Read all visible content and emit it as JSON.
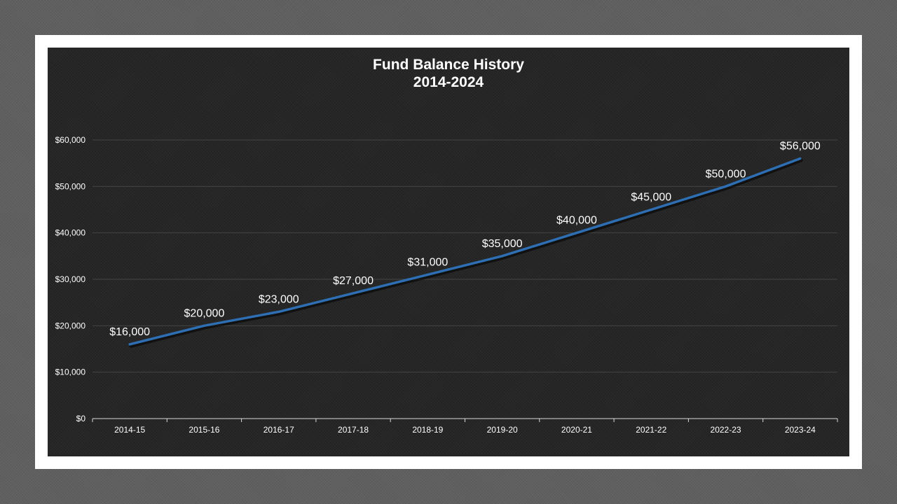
{
  "colors": {
    "background": "#5f5f5f",
    "frame": "#ffffff",
    "plot_background": "#262626",
    "line": "#2e6fb4",
    "text": "#ffffff",
    "gridline": "#444444"
  },
  "chart_data": {
    "type": "line",
    "title": "Fund Balance History",
    "subtitle": "2014-2024",
    "xlabel": "",
    "ylabel": "",
    "categories": [
      "2014-15",
      "2015-16",
      "2016-17",
      "2017-18",
      "2018-19",
      "2019-20",
      "2020-21",
      "2021-22",
      "2022-23",
      "2023-24"
    ],
    "series": [
      {
        "values": [
          16000,
          20000,
          23000,
          27000,
          31000,
          35000,
          40000,
          45000,
          50000,
          56000
        ]
      }
    ],
    "data_labels": [
      "$16,000",
      "$20,000",
      "$23,000",
      "$27,000",
      "$31,000",
      "$35,000",
      "$40,000",
      "$45,000",
      "$50,000",
      "$56,000"
    ],
    "y_ticks": [
      0,
      10000,
      20000,
      30000,
      40000,
      50000,
      60000
    ],
    "y_tick_labels": [
      "$0",
      "$10,000",
      "$20,000",
      "$30,000",
      "$40,000",
      "$50,000",
      "$60,000"
    ],
    "ylim": [
      0,
      60000
    ],
    "grid": true,
    "legend": "none"
  }
}
